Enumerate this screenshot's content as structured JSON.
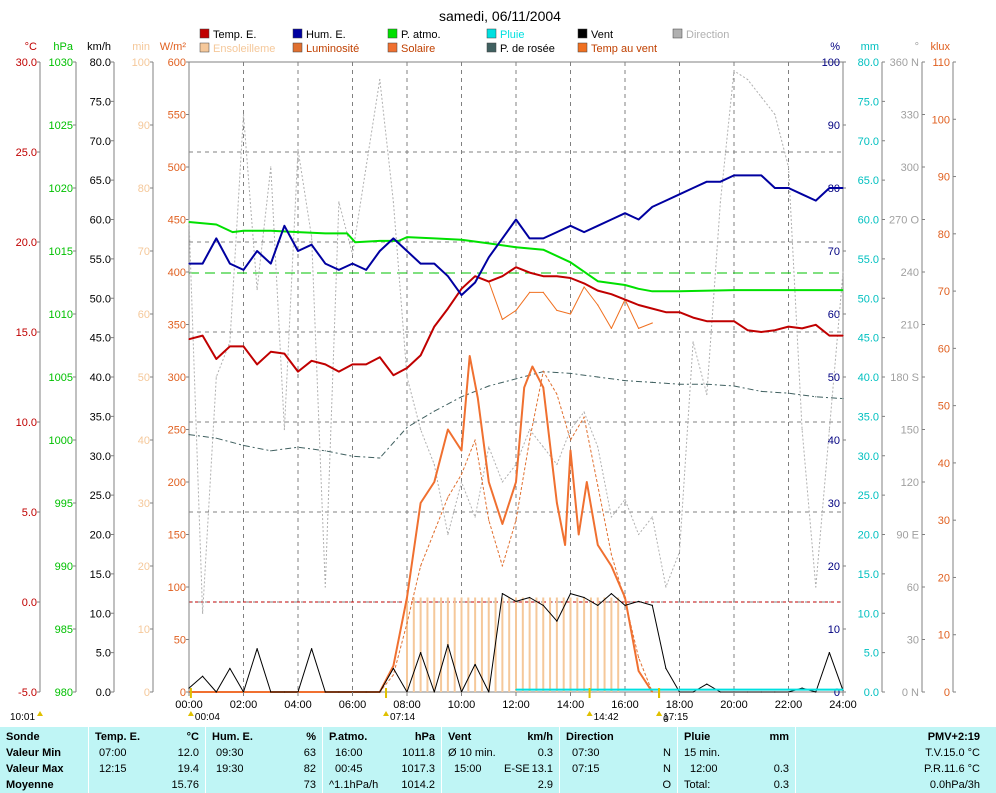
{
  "chart_data": {
    "type": "line",
    "title": "samedi, 06/11/2004",
    "x_ticks": [
      "00:00",
      "02:00",
      "04:00",
      "06:00",
      "08:00",
      "10:00",
      "12:00",
      "14:00",
      "16:00",
      "18:00",
      "20:00",
      "22:00",
      "24:00"
    ],
    "left_axes": [
      {
        "unit": "°C",
        "color": "#c00000",
        "min": -5,
        "max": 30,
        "step": 5,
        "labels": [
          "-5.0",
          "0.0",
          "5.0",
          "10.0",
          "15.0",
          "20.0",
          "25.0",
          "30.0"
        ]
      },
      {
        "unit": "hPa",
        "color": "#00c000",
        "min": 980,
        "max": 1030,
        "step": 5,
        "labels": [
          "980",
          "985",
          "990",
          "995",
          "1000",
          "1005",
          "1010",
          "1015",
          "1020",
          "1025",
          "1030"
        ]
      },
      {
        "unit": "km/h",
        "color": "#000000",
        "min": 0,
        "max": 80,
        "step": 5,
        "labels": [
          "0.0",
          "5.0",
          "10.0",
          "15.0",
          "20.0",
          "25.0",
          "30.0",
          "35.0",
          "40.0",
          "45.0",
          "50.0",
          "55.0",
          "60.0",
          "65.0",
          "70.0",
          "75.0",
          "80.0"
        ]
      },
      {
        "unit": "min",
        "color": "#f5c89a",
        "min": 0,
        "max": 100,
        "step": 10,
        "labels": [
          "0",
          "10",
          "20",
          "30",
          "40",
          "50",
          "60",
          "70",
          "80",
          "90",
          "100"
        ]
      },
      {
        "unit": "W/m²",
        "color": "#e06020",
        "min": 0,
        "max": 600,
        "step": 50,
        "labels": [
          "0",
          "50",
          "100",
          "150",
          "200",
          "250",
          "300",
          "350",
          "400",
          "450",
          "500",
          "550",
          "600"
        ]
      }
    ],
    "right_axes": [
      {
        "unit": "%",
        "color": "#000080",
        "min": 0,
        "max": 100,
        "step": 10,
        "labels": [
          "0",
          "10",
          "20",
          "30",
          "40",
          "50",
          "60",
          "70",
          "80",
          "90",
          "100"
        ]
      },
      {
        "unit": "mm",
        "color": "#00c0c0",
        "min": 0,
        "max": 80,
        "step": 5,
        "labels": [
          "0.0",
          "5.0",
          "10.0",
          "15.0",
          "20.0",
          "25.0",
          "30.0",
          "35.0",
          "40.0",
          "45.0",
          "50.0",
          "55.0",
          "60.0",
          "65.0",
          "70.0",
          "75.0",
          "80.0"
        ]
      },
      {
        "unit": "°",
        "color": "#a0a0a0",
        "min": 0,
        "max": 360,
        "step": 30,
        "labels": [
          "0 N",
          "30",
          "60",
          "90 E",
          "120",
          "150",
          "180 S",
          "210",
          "240",
          "270 O",
          "300",
          "330",
          "360 N"
        ]
      },
      {
        "unit": "klux",
        "color": "#e06020",
        "min": 0,
        "max": 110,
        "step": 10,
        "labels": [
          "0",
          "10",
          "20",
          "30",
          "40",
          "50",
          "60",
          "70",
          "80",
          "90",
          "100",
          "110"
        ]
      }
    ],
    "legend": [
      {
        "label": "Temp. E.",
        "color": "#c00000"
      },
      {
        "label": "Hum. E.",
        "color": "#0000a0"
      },
      {
        "label": "P. atmo.",
        "color": "#00e000"
      },
      {
        "label": "Pluie",
        "color": "#00e0e0"
      },
      {
        "label": "Vent",
        "color": "#000000"
      },
      {
        "label": "Direction",
        "color": "#b0b0b0"
      },
      {
        "label": "Ensoleilleme",
        "color": "#f5c89a"
      },
      {
        "label": "Luminosité",
        "color": "#e07030"
      },
      {
        "label": "Solaire",
        "color": "#f07030"
      },
      {
        "label": "P. de rosée",
        "color": "#406060"
      },
      {
        "label": "Temp au vent",
        "color": "#f07020"
      }
    ],
    "ref_lines": [
      {
        "axis": "°C",
        "value": 0,
        "color": "#c00000"
      },
      {
        "axis": "hPa",
        "value": 1013.25,
        "color": "#00c000"
      }
    ],
    "series": [
      {
        "name": "Temp. E.",
        "axis": "°C",
        "color": "#c00000",
        "x": [
          0,
          0.5,
          1,
          1.5,
          2,
          2.5,
          3,
          3.5,
          4,
          4.5,
          5,
          5.5,
          6,
          6.5,
          7,
          7.5,
          8,
          8.5,
          9,
          9.5,
          10,
          10.5,
          11,
          11.5,
          12,
          12.5,
          13,
          13.5,
          14,
          14.5,
          15,
          15.5,
          16,
          16.5,
          17,
          17.5,
          18,
          18.5,
          19,
          19.5,
          20,
          20.5,
          21,
          21.5,
          22,
          22.5,
          23,
          23.5,
          24
        ],
        "y": [
          14.6,
          14.8,
          13.5,
          14.2,
          14.2,
          13.2,
          13.9,
          13.8,
          12.8,
          13.4,
          13.2,
          12.8,
          13.2,
          13.2,
          13.6,
          12.6,
          13,
          13.7,
          15.3,
          16.3,
          17.4,
          18.1,
          17.8,
          18.1,
          18.6,
          18.3,
          18.1,
          18.1,
          18,
          17.7,
          17.3,
          17.1,
          16.8,
          16.5,
          16.3,
          16.1,
          16.1,
          15.8,
          15.6,
          15.6,
          15.6,
          15.1,
          15,
          15.1,
          15.3,
          15.2,
          15.4,
          14.8,
          14.8
        ]
      },
      {
        "name": "Hum. E.",
        "axis": "%",
        "color": "#0000a0",
        "x": [
          0,
          0.5,
          1,
          1.5,
          2,
          2.5,
          3,
          3.5,
          4,
          4.5,
          5,
          5.5,
          6,
          6.5,
          7,
          7.5,
          8,
          8.5,
          9,
          9.5,
          10,
          10.5,
          11,
          11.5,
          12,
          12.5,
          13,
          13.5,
          14,
          14.5,
          15,
          15.5,
          16,
          16.5,
          17,
          17.5,
          18,
          18.5,
          19,
          19.5,
          20,
          20.5,
          21,
          21.5,
          22,
          22.5,
          23,
          23.5,
          24
        ],
        "y": [
          68,
          68,
          72,
          68,
          67,
          70,
          68,
          74,
          70,
          71,
          68,
          67,
          68,
          67,
          70,
          72,
          70,
          68,
          68,
          66,
          63,
          65,
          69,
          72,
          75,
          72,
          72,
          73,
          74,
          73,
          74,
          75,
          76,
          75,
          77,
          78,
          79,
          80,
          81,
          81,
          82,
          82,
          82,
          80,
          80,
          79,
          78,
          80,
          80
        ]
      },
      {
        "name": "P. atmo.",
        "axis": "hPa",
        "color": "#00e000",
        "x": [
          0,
          1,
          1.6,
          2,
          3,
          4,
          5,
          5.8,
          6.1,
          7,
          7.7,
          8,
          9,
          10,
          11,
          12,
          13,
          14,
          15,
          16,
          16.5,
          17,
          18,
          20,
          22,
          24
        ],
        "y": [
          1017.3,
          1017.1,
          1016.5,
          1016.6,
          1016.6,
          1016.5,
          1016.4,
          1016.4,
          1015.7,
          1015.8,
          1015.8,
          1016.1,
          1016,
          1015.9,
          1015.6,
          1015.3,
          1015.1,
          1014.1,
          1012.6,
          1012.3,
          1012,
          1011.8,
          1011.8,
          1011.9,
          1011.9,
          1011.9
        ]
      },
      {
        "name": "Pluie",
        "axis": "mm",
        "color": "#00e0e0",
        "x": [
          12,
          24
        ],
        "y": [
          0.3,
          0.3
        ]
      },
      {
        "name": "Vent",
        "axis": "km/h",
        "color": "#000000",
        "x": [
          0,
          0.5,
          1,
          1.5,
          2,
          2.5,
          3,
          3.5,
          4,
          4.5,
          5,
          5.5,
          6,
          6.5,
          7,
          7.5,
          8,
          8.5,
          9,
          9.5,
          10,
          10.5,
          11,
          11.5,
          12,
          12.5,
          13,
          13.5,
          14,
          14.5,
          15,
          15.5,
          16,
          16.5,
          17,
          17.5,
          18,
          18.5,
          19,
          19.5,
          20,
          20.5,
          21,
          21.5,
          22,
          22.5,
          23,
          23.5,
          24
        ],
        "y": [
          0.5,
          2,
          0,
          3,
          0,
          5.5,
          0,
          0,
          0,
          5.5,
          0,
          0,
          0,
          0,
          0,
          3,
          0,
          5,
          0,
          6,
          0,
          3.5,
          0,
          12.5,
          11.5,
          12,
          11,
          9,
          12.5,
          12,
          11,
          12.5,
          11,
          11.5,
          11,
          3,
          0,
          0,
          1,
          0,
          0,
          0,
          0,
          0,
          0,
          0.5,
          0,
          5,
          0.2
        ]
      },
      {
        "name": "Direction",
        "axis": "°",
        "color": "#b0b0b0",
        "x": [
          0,
          0.5,
          1,
          1.5,
          2,
          2.5,
          3,
          3.5,
          4,
          4.5,
          5,
          5.5,
          6,
          6.5,
          7,
          7.5,
          8,
          8.5,
          9,
          9.5,
          10,
          10.5,
          11,
          11.5,
          12,
          12.5,
          13,
          13.5,
          14,
          14.5,
          15,
          15.5,
          16,
          16.5,
          17,
          17.5,
          18,
          18.5,
          19,
          19.5,
          20,
          20.5,
          21,
          21.5,
          22,
          22.5,
          23,
          23.5,
          24
        ],
        "y": [
          270,
          45,
          180,
          200,
          330,
          230,
          300,
          150,
          310,
          260,
          60,
          280,
          250,
          300,
          350,
          280,
          180,
          150,
          130,
          90,
          120,
          100,
          140,
          120,
          130,
          150,
          140,
          130,
          150,
          160,
          140,
          100,
          110,
          90,
          100,
          60,
          80,
          200,
          170,
          280,
          355,
          350,
          340,
          330,
          300,
          150,
          60,
          150,
          240
        ]
      },
      {
        "name": "Solaire",
        "axis": "W/m²",
        "color": "#f07030",
        "x": [
          0,
          7,
          7.5,
          8,
          8.5,
          9,
          9.5,
          10,
          10.3,
          10.6,
          11,
          11.5,
          12,
          12.3,
          12.6,
          13,
          13.5,
          13.8,
          14,
          14.3,
          14.6,
          15,
          15.5,
          16,
          16.5,
          17
        ],
        "y": [
          0,
          0,
          25,
          90,
          180,
          200,
          250,
          230,
          320,
          280,
          200,
          160,
          200,
          290,
          310,
          290,
          180,
          140,
          230,
          150,
          200,
          140,
          120,
          90,
          20,
          0
        ]
      },
      {
        "name": "Luminosité",
        "axis": "klux",
        "color": "#e07030",
        "x": [
          0,
          7,
          7.5,
          8,
          8.5,
          9,
          9.5,
          10,
          10.5,
          11,
          11.5,
          12,
          12.5,
          13,
          13.5,
          14,
          14.5,
          15,
          15.5,
          16,
          16.5,
          17
        ],
        "y": [
          0,
          0,
          3,
          12,
          22,
          28,
          34,
          38,
          44,
          30,
          22,
          30,
          44,
          56,
          52,
          44,
          48,
          36,
          24,
          16,
          6,
          0
        ]
      },
      {
        "name": "P. de rosée",
        "axis": "°C",
        "color": "#406060",
        "x": [
          0,
          1,
          2,
          3,
          4,
          5,
          6,
          7,
          8,
          9,
          10,
          11,
          12,
          13,
          14,
          15,
          16,
          17,
          18,
          19,
          20,
          21,
          22,
          23,
          24
        ],
        "y": [
          9.3,
          9.1,
          8.7,
          8.4,
          8.6,
          8.4,
          8.1,
          8,
          9.7,
          10.6,
          11.4,
          12,
          12.4,
          12.8,
          12.7,
          12.5,
          12.3,
          12.2,
          12.1,
          12.1,
          12,
          11.7,
          11.6,
          11.4,
          11.3
        ]
      },
      {
        "name": "Temp au vent",
        "axis": "°C",
        "color": "#f07020",
        "x": [
          11,
          11.5,
          12,
          12.5,
          13,
          13.5,
          14,
          14.5,
          15,
          15.5,
          16,
          16.5,
          17
        ],
        "y": [
          17.8,
          15.7,
          16.2,
          17.2,
          17.2,
          16.2,
          16,
          17.5,
          16.5,
          15.2,
          16.8,
          15.2,
          15.5
        ]
      },
      {
        "name": "Ensoleilleme",
        "axis": "min",
        "color": "#f5c89a",
        "type": "bar",
        "x": [
          8,
          8.25,
          8.5,
          8.75,
          9,
          9.25,
          9.5,
          9.75,
          10,
          10.25,
          10.5,
          10.75,
          11,
          11.25,
          11.5,
          11.75,
          12,
          12.25,
          12.5,
          12.75,
          13,
          13.25,
          13.5,
          13.75,
          14,
          14.25,
          14.5,
          14.75,
          15,
          15.25,
          15.5,
          15.75
        ],
        "y": [
          15,
          15,
          15,
          15,
          15,
          15,
          15,
          15,
          15,
          15,
          15,
          15,
          15,
          15,
          15,
          15,
          15,
          15,
          15,
          15,
          15,
          15,
          15,
          15,
          15,
          15,
          15,
          15,
          15,
          15,
          15,
          15
        ]
      }
    ],
    "time_markers": [
      {
        "label": "10:01",
        "x": -2.8
      },
      {
        "label": "00:04",
        "x": 0.07
      },
      {
        "label": "07:14",
        "x": 7.23
      },
      {
        "label": "14:42",
        "x": 14.7
      },
      {
        "label": "17:15",
        "x": 17.25
      },
      {
        "label": "0",
        "x": 17.25
      }
    ]
  },
  "stats": {
    "sonde": {
      "header": "Sonde",
      "rows": [
        "Valeur Min",
        "Valeur Max",
        "Moyenne"
      ]
    },
    "temp": {
      "header": "Temp. E.",
      "unit": "°C",
      "rows": [
        [
          "07:00",
          "12.0"
        ],
        [
          "12:15",
          "19.4"
        ],
        [
          "",
          "15.76"
        ]
      ]
    },
    "hum": {
      "header": "Hum. E.",
      "unit": "%",
      "rows": [
        [
          "09:30",
          "63"
        ],
        [
          "19:30",
          "82"
        ],
        [
          "",
          "73"
        ]
      ]
    },
    "patmo": {
      "header": "P.atmo.",
      "unit": "hPa",
      "rows": [
        [
          "16:00",
          "1011.8"
        ],
        [
          "00:45",
          "1017.3"
        ],
        [
          "^1.1hPa/h",
          "1014.2"
        ]
      ]
    },
    "vent": {
      "header": "Vent",
      "unit": "km/h",
      "rows": [
        [
          "Ø 10 min.",
          "",
          "0.3"
        ],
        [
          "15:00",
          "E-SE",
          "13.1"
        ],
        [
          "",
          "",
          "2.9"
        ]
      ]
    },
    "dir": {
      "header": "Direction",
      "rows": [
        [
          "07:30",
          "N"
        ],
        [
          "07:15",
          "N"
        ],
        [
          "",
          "O"
        ]
      ]
    },
    "pluie": {
      "header": "Pluie",
      "unit": "mm",
      "rows": [
        [
          "15 min.",
          ""
        ],
        [
          "12:00",
          "0.3"
        ],
        [
          "Total:",
          "0.3"
        ]
      ]
    },
    "pmv": {
      "header": "PMV+2:19",
      "rows": [
        "T.V.15.0 °C",
        "P.R.11.6 °C",
        "0.0hPa/3h"
      ]
    }
  }
}
